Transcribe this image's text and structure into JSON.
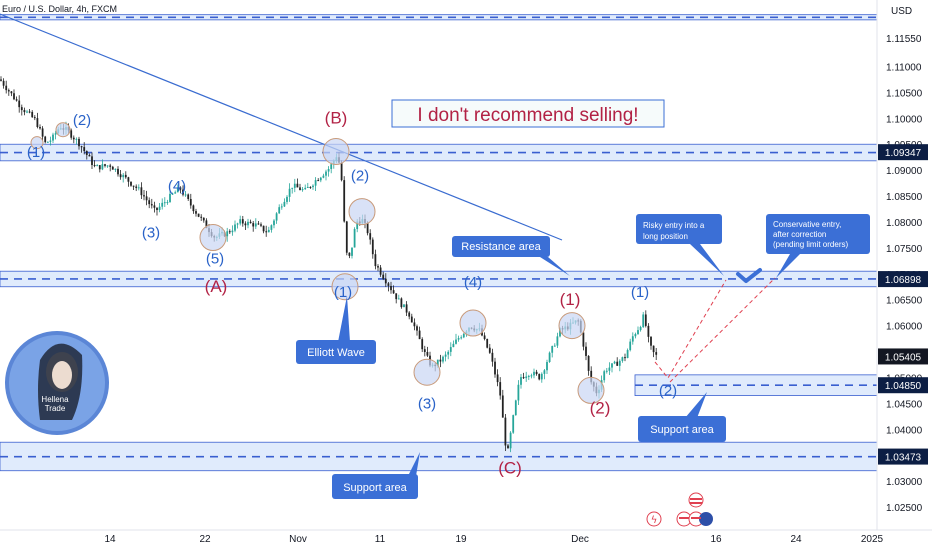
{
  "header": {
    "symbol": "Euro / U.S. Dollar, 4h, FXCM",
    "currency": "USD"
  },
  "chart_data": {
    "type": "candlestick",
    "ylim": [
      1.0205,
      1.1205
    ],
    "y_ticks": [
      "1.11550",
      "1.11000",
      "1.10500",
      "1.10000",
      "1.09500",
      "1.09000",
      "1.08500",
      "1.08000",
      "1.07500",
      "1.07000",
      "1.06500",
      "1.06000",
      "1.05500",
      "1.05000",
      "1.04500",
      "1.04000",
      "1.03500",
      "1.03000",
      "1.02500"
    ],
    "x_ticks": [
      "14",
      "22",
      "Nov",
      "11",
      "19",
      "Dec",
      "16",
      "24",
      "2025"
    ],
    "price_labels": [
      {
        "value": "1.09347",
        "price": 1.09347,
        "style": "dark"
      },
      {
        "value": "1.06898",
        "price": 1.06898,
        "style": "dark"
      },
      {
        "value": "1.05405",
        "price": 1.05405,
        "style": "black"
      },
      {
        "value": "1.04850",
        "price": 1.0485,
        "style": "dark"
      },
      {
        "value": "1.03473",
        "price": 1.03473,
        "style": "dark"
      }
    ],
    "price_path": [
      [
        0,
        1.1075
      ],
      [
        10,
        1.105
      ],
      [
        22,
        1.102
      ],
      [
        36,
        1.0995
      ],
      [
        45,
        1.0952
      ],
      [
        52,
        1.096
      ],
      [
        60,
        1.0985
      ],
      [
        68,
        1.0975
      ],
      [
        80,
        1.095
      ],
      [
        95,
        1.0905
      ],
      [
        110,
        1.091
      ],
      [
        125,
        1.0885
      ],
      [
        140,
        1.086
      ],
      [
        155,
        1.082
      ],
      [
        168,
        1.0845
      ],
      [
        180,
        1.0865
      ],
      [
        190,
        1.0835
      ],
      [
        205,
        1.0795
      ],
      [
        215,
        1.077
      ],
      [
        228,
        1.078
      ],
      [
        240,
        1.08
      ],
      [
        255,
        1.0795
      ],
      [
        268,
        1.078
      ],
      [
        280,
        1.083
      ],
      [
        292,
        1.087
      ],
      [
        305,
        1.086
      ],
      [
        318,
        1.0885
      ],
      [
        330,
        1.0905
      ],
      [
        337,
        1.093
      ],
      [
        341,
        1.09
      ],
      [
        346,
        1.074
      ],
      [
        350,
        1.073
      ],
      [
        356,
        1.08
      ],
      [
        362,
        1.0805
      ],
      [
        368,
        1.078
      ],
      [
        375,
        1.072
      ],
      [
        385,
        1.069
      ],
      [
        398,
        1.065
      ],
      [
        410,
        1.062
      ],
      [
        418,
        1.058
      ],
      [
        425,
        1.0545
      ],
      [
        432,
        1.052
      ],
      [
        445,
        1.054
      ],
      [
        458,
        1.0575
      ],
      [
        470,
        1.06
      ],
      [
        480,
        1.059
      ],
      [
        490,
        1.0545
      ],
      [
        500,
        1.047
      ],
      [
        507,
        1.0345
      ],
      [
        513,
        1.042
      ],
      [
        520,
        1.05
      ],
      [
        530,
        1.051
      ],
      [
        540,
        1.05
      ],
      [
        550,
        1.0545
      ],
      [
        560,
        1.059
      ],
      [
        570,
        1.06
      ],
      [
        578,
        1.061
      ],
      [
        585,
        1.055
      ],
      [
        590,
        1.0495
      ],
      [
        597,
        1.047
      ],
      [
        605,
        1.0515
      ],
      [
        615,
        1.0525
      ],
      [
        625,
        1.054
      ],
      [
        633,
        1.058
      ],
      [
        640,
        1.06
      ],
      [
        644,
        1.062
      ],
      [
        648,
        1.0575
      ],
      [
        652,
        1.055
      ],
      [
        657,
        1.054
      ]
    ],
    "waves": [
      {
        "text": "(1)",
        "px": 36,
        "price": 1.0925,
        "color": "blue"
      },
      {
        "text": "(2)",
        "px": 82,
        "price": 1.0987,
        "color": "blue"
      },
      {
        "text": "(3)",
        "px": 151,
        "price": 1.077,
        "color": "blue"
      },
      {
        "text": "(4)",
        "px": 177,
        "price": 1.086,
        "color": "blue"
      },
      {
        "text": "(5)",
        "px": 215,
        "price": 1.072,
        "color": "blue"
      },
      {
        "text": "(A)",
        "px": 216,
        "price": 1.0665,
        "color": "red"
      },
      {
        "text": "(B)",
        "px": 336,
        "price": 1.099,
        "color": "red"
      },
      {
        "text": "(2)",
        "px": 360,
        "price": 1.088,
        "color": "blue"
      },
      {
        "text": "(1)",
        "px": 343,
        "price": 1.0655,
        "color": "blue"
      },
      {
        "text": "(4)",
        "px": 473,
        "price": 1.0675,
        "color": "blue"
      },
      {
        "text": "(3)",
        "px": 427,
        "price": 1.044,
        "color": "blue"
      },
      {
        "text": "(C)",
        "px": 510,
        "price": 1.0315,
        "color": "red"
      },
      {
        "text": "(1)",
        "px": 570,
        "price": 1.064,
        "color": "red"
      },
      {
        "text": "(2)",
        "px": 600,
        "price": 1.043,
        "color": "red"
      },
      {
        "text": "(1)",
        "px": 640,
        "price": 1.0655,
        "color": "blue"
      },
      {
        "text": "(2)",
        "px": 668,
        "price": 1.0465,
        "color": "blue"
      }
    ],
    "circles": [
      {
        "px": 37,
        "price": 1.0953,
        "r": 6
      },
      {
        "px": 63,
        "price": 1.0978,
        "r": 7
      },
      {
        "px": 213,
        "price": 1.077,
        "r": 13
      },
      {
        "px": 336,
        "price": 1.0936,
        "r": 13
      },
      {
        "px": 362,
        "price": 1.082,
        "r": 13
      },
      {
        "px": 345,
        "price": 1.0675,
        "r": 13
      },
      {
        "px": 473,
        "price": 1.0605,
        "r": 13
      },
      {
        "px": 427,
        "price": 1.051,
        "r": 13
      },
      {
        "px": 572,
        "price": 1.06,
        "r": 13
      },
      {
        "px": 591,
        "price": 1.0475,
        "r": 13
      }
    ],
    "zones": [
      {
        "name": "top-zone",
        "top": 1.12,
        "bottom": 1.119,
        "line": 1.1195
      },
      {
        "name": "resistance-zone-1",
        "top": 1.095,
        "bottom": 1.0918,
        "line": 1.0934
      },
      {
        "name": "resistance-zone-2",
        "top": 1.0705,
        "bottom": 1.0675,
        "line": 1.069
      },
      {
        "name": "support-zone-1",
        "top": 1.0505,
        "bottom": 1.0465,
        "line": 1.0485,
        "x1": 635
      },
      {
        "name": "support-zone-2",
        "top": 1.0375,
        "bottom": 1.032,
        "line": 1.0347
      }
    ]
  },
  "annotations": {
    "headline": "I don't recommend selling!",
    "resistance_area": "Resistance area",
    "elliott_wave": "Elliott Wave",
    "support_area_left": "Support area",
    "support_area_right": "Support area",
    "risky_entry": [
      "Risky entry into a",
      "long position"
    ],
    "conservative_entry": [
      "Conservative entry,",
      "after correction",
      "(pending limit orders)"
    ],
    "avatar_text": [
      "Hellena",
      "Trade"
    ]
  },
  "colors": {
    "bull": "#26a69a",
    "bear": "#222222",
    "zone_fill": "#d6e4fb",
    "zone_line": "#3a5fd0",
    "trendline": "#3a6cd0",
    "wave_blue": "#2962c8",
    "wave_red": "#b22245",
    "callout": "#3b6fd6",
    "headline": "#b22245",
    "dashed": "#e04050"
  }
}
